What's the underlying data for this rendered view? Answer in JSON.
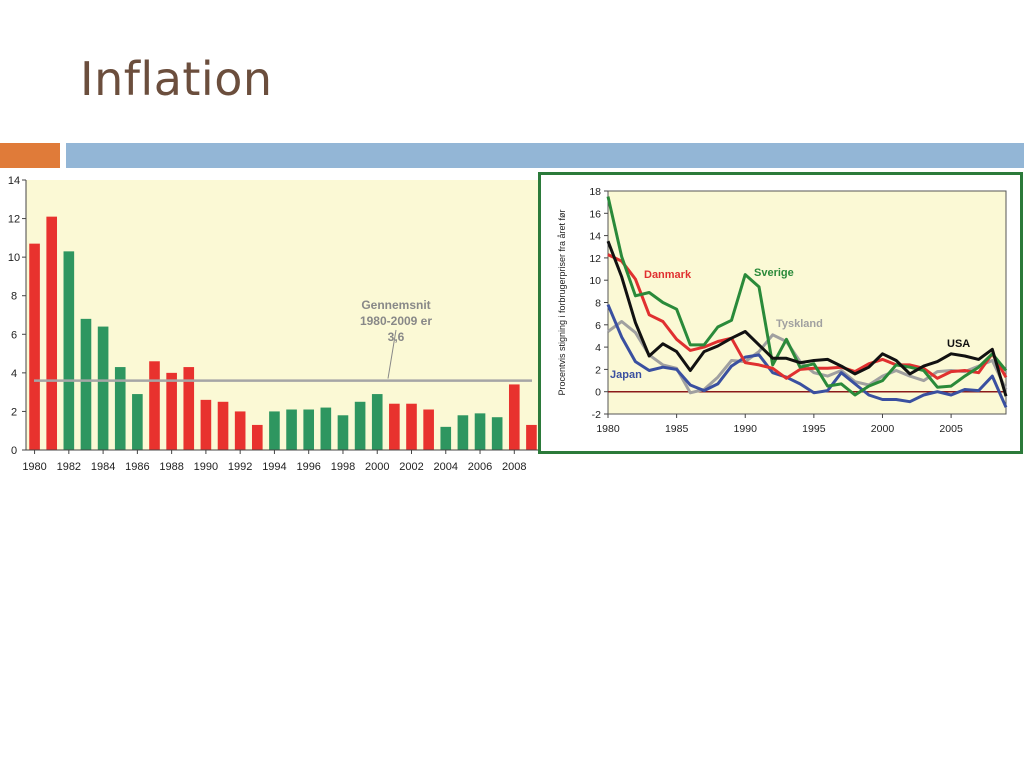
{
  "slide": {
    "title": "Inflation"
  },
  "chart_data": [
    {
      "type": "bar",
      "x": [
        1980,
        1981,
        1982,
        1983,
        1984,
        1985,
        1986,
        1987,
        1988,
        1989,
        1990,
        1991,
        1992,
        1993,
        1994,
        1995,
        1996,
        1997,
        1998,
        1999,
        2000,
        2001,
        2002,
        2003,
        2004,
        2005,
        2006,
        2007,
        2008,
        2009
      ],
      "values": [
        10.7,
        12.1,
        10.3,
        6.8,
        6.4,
        4.3,
        2.9,
        4.6,
        4.0,
        4.3,
        2.6,
        2.5,
        2.0,
        1.3,
        2.0,
        2.1,
        2.1,
        2.2,
        1.8,
        2.5,
        2.9,
        2.4,
        2.4,
        2.1,
        1.2,
        1.8,
        1.9,
        1.7,
        3.4,
        1.3
      ],
      "bar_colors": [
        "red",
        "red",
        "green",
        "green",
        "green",
        "green",
        "green",
        "red",
        "red",
        "red",
        "red",
        "red",
        "red",
        "red",
        "green",
        "green",
        "green",
        "green",
        "green",
        "green",
        "green",
        "red",
        "red",
        "red",
        "green",
        "green",
        "green",
        "green",
        "red",
        "red"
      ],
      "colors": {
        "red": "#e8322e",
        "green": "#2e9660",
        "average_line": "#a6a6a6",
        "background": "#fbf9d5"
      },
      "ylim": [
        0,
        14
      ],
      "yticks": [
        "0",
        "2",
        "4",
        "6",
        "8",
        "10",
        "12",
        "14"
      ],
      "xticks": [
        "1980",
        "1982",
        "1984",
        "1986",
        "1988",
        "1990",
        "1992",
        "1994",
        "1996",
        "1998",
        "2000",
        "2002",
        "2004",
        "2006",
        "2008"
      ],
      "average": 3.6,
      "annotation": [
        "Gennemsnit",
        "1980-2009 er",
        "3,6"
      ],
      "grid": false
    },
    {
      "type": "line",
      "ylabel": "Procentvis stigning i forbrugerpriser fra året før",
      "ylim": [
        -2,
        18
      ],
      "xlim": [
        1980,
        2009
      ],
      "yticks": [
        "-2",
        "0",
        "2",
        "4",
        "6",
        "8",
        "10",
        "12",
        "14",
        "16",
        "18"
      ],
      "xticks": [
        "1980",
        "1985",
        "1990",
        "1995",
        "2000",
        "2005"
      ],
      "colors": {
        "background": "#fbf9d5",
        "frame": "#2b7a3a",
        "zero_line": "#8b1a1a"
      },
      "x": [
        1980,
        1981,
        1982,
        1983,
        1984,
        1985,
        1986,
        1987,
        1988,
        1989,
        1990,
        1991,
        1992,
        1993,
        1994,
        1995,
        1996,
        1997,
        1998,
        1999,
        2000,
        2001,
        2002,
        2003,
        2004,
        2005,
        2006,
        2007,
        2008,
        2009
      ],
      "series": [
        {
          "name": "Danmark",
          "color": "#e03030",
          "values": [
            12.3,
            11.7,
            10.1,
            6.9,
            6.3,
            4.7,
            3.7,
            4.0,
            4.5,
            4.8,
            2.6,
            2.4,
            2.1,
            1.2,
            2.0,
            2.1,
            2.1,
            2.2,
            1.8,
            2.5,
            2.9,
            2.4,
            2.4,
            2.1,
            1.2,
            1.8,
            1.9,
            1.7,
            3.4,
            1.3
          ]
        },
        {
          "name": "Sverige",
          "color": "#2a8a3a",
          "values": [
            17.5,
            12.1,
            8.6,
            8.9,
            8.0,
            7.4,
            4.2,
            4.2,
            5.8,
            6.4,
            10.5,
            9.4,
            2.4,
            4.7,
            2.2,
            2.5,
            0.5,
            0.7,
            -0.3,
            0.5,
            1.0,
            2.4,
            2.2,
            1.9,
            0.4,
            0.5,
            1.4,
            2.2,
            3.4,
            1.9
          ]
        },
        {
          "name": "Tyskland",
          "color": "#a0a0a0",
          "values": [
            5.4,
            6.3,
            5.3,
            3.3,
            2.4,
            2.1,
            -0.1,
            0.2,
            1.3,
            2.8,
            2.7,
            3.6,
            5.1,
            4.5,
            2.7,
            1.7,
            1.4,
            1.9,
            0.9,
            0.6,
            1.4,
            1.9,
            1.4,
            1.0,
            1.8,
            1.9,
            1.8,
            2.3,
            2.8,
            0.2
          ]
        },
        {
          "name": "USA",
          "color": "#111111",
          "values": [
            13.5,
            10.3,
            6.2,
            3.2,
            4.3,
            3.6,
            1.9,
            3.6,
            4.1,
            4.8,
            5.4,
            4.2,
            3.0,
            3.0,
            2.6,
            2.8,
            2.9,
            2.3,
            1.6,
            2.2,
            3.4,
            2.8,
            1.6,
            2.3,
            2.7,
            3.4,
            3.2,
            2.9,
            3.8,
            -0.4
          ]
        },
        {
          "name": "Japan",
          "color": "#3a50a0",
          "values": [
            7.8,
            4.9,
            2.7,
            1.9,
            2.2,
            2.0,
            0.6,
            0.1,
            0.7,
            2.3,
            3.1,
            3.3,
            1.7,
            1.3,
            0.7,
            -0.1,
            0.1,
            1.7,
            0.7,
            -0.3,
            -0.7,
            -0.7,
            -0.9,
            -0.3,
            0.0,
            -0.3,
            0.2,
            0.1,
            1.4,
            -1.4
          ]
        }
      ],
      "series_labels": [
        "Danmark",
        "Sverige",
        "Tyskland",
        "USA",
        "Japan"
      ],
      "legend": "inline labels",
      "grid": false
    }
  ]
}
